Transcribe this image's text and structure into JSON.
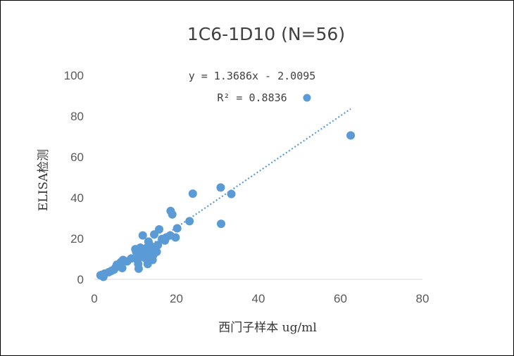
{
  "chart_data": {
    "type": "scatter",
    "title": "1C6-1D10 (N=56)",
    "xlabel": "西门子样本 ug/ml",
    "ylabel": "ELISA检测",
    "xlim": [
      0,
      80
    ],
    "ylim": [
      0,
      100
    ],
    "x_ticks": [
      "0",
      "20",
      "40",
      "60",
      "80"
    ],
    "y_ticks": [
      "0",
      "20",
      "40",
      "60",
      "80",
      "100"
    ],
    "grid": false,
    "marker_color": "#5B9BD5",
    "trendline": {
      "type": "linear",
      "slope": 1.3686,
      "intercept": -2.0095,
      "x_range": [
        2,
        62.5
      ],
      "style": "dotted",
      "color": "#5B9BD5"
    },
    "equation_text": "y = 1.3686x - 2.0095",
    "r_squared_text": "R² = 0.8836",
    "points": [
      [
        1.8,
        2.2
      ],
      [
        2.2,
        1.2
      ],
      [
        2.5,
        2.8
      ],
      [
        3.5,
        3.5
      ],
      [
        4.2,
        4.2
      ],
      [
        4.8,
        4.8
      ],
      [
        5.2,
        5.8
      ],
      [
        5.5,
        7.2
      ],
      [
        6.0,
        7.5
      ],
      [
        6.5,
        8.5
      ],
      [
        6.8,
        5.5
      ],
      [
        7.0,
        9.5
      ],
      [
        10.0,
        14.8
      ],
      [
        10.2,
        13.5
      ],
      [
        10.5,
        9.5
      ],
      [
        10.7,
        7.5
      ],
      [
        10.8,
        5.2
      ],
      [
        11.0,
        11.5
      ],
      [
        11.2,
        15.5
      ],
      [
        11.5,
        13.0
      ],
      [
        11.8,
        21.5
      ],
      [
        12.0,
        12.0
      ],
      [
        12.3,
        10.5
      ],
      [
        12.5,
        14.0
      ],
      [
        12.8,
        15.5
      ],
      [
        13.0,
        7.5
      ],
      [
        13.0,
        11.0
      ],
      [
        13.2,
        18.5
      ],
      [
        13.3,
        17.5
      ],
      [
        13.5,
        12.5
      ],
      [
        13.8,
        14.5
      ],
      [
        14.0,
        16.0
      ],
      [
        14.2,
        9.5
      ],
      [
        14.4,
        12.0
      ],
      [
        14.6,
        22.0
      ],
      [
        14.8,
        15.0
      ],
      [
        15.2,
        13.5
      ],
      [
        15.8,
        24.5
      ],
      [
        16.5,
        19.8
      ],
      [
        17.2,
        19.0
      ],
      [
        17.5,
        20.5
      ],
      [
        18.5,
        21.5
      ],
      [
        18.6,
        33.5
      ],
      [
        19.0,
        31.8
      ],
      [
        19.8,
        20.5
      ],
      [
        20.2,
        25.0
      ],
      [
        23.2,
        28.5
      ],
      [
        24.0,
        42.0
      ],
      [
        30.8,
        45.0
      ],
      [
        30.9,
        27.2
      ],
      [
        33.4,
        41.8
      ],
      [
        62.5,
        70.5
      ],
      [
        1.5,
        2.0
      ],
      [
        8.0,
        8.8
      ],
      [
        9.0,
        10.2
      ],
      [
        15.5,
        16.8
      ]
    ]
  }
}
